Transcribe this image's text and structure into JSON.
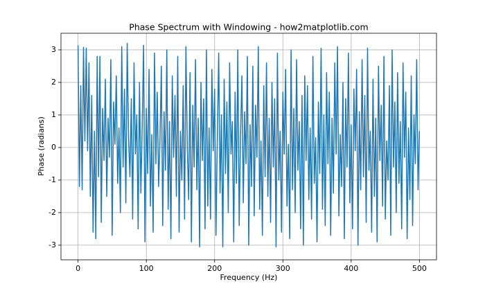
{
  "chart_data": {
    "type": "line",
    "title": "Phase Spectrum with Windowing - how2matplotlib.com",
    "xlabel": "Frequency (Hz)",
    "ylabel": "Phase (radians)",
    "x": [
      0,
      2,
      4,
      6,
      8,
      10,
      12,
      14,
      16,
      18,
      20,
      22,
      24,
      26,
      28,
      30,
      32,
      34,
      36,
      38,
      40,
      42,
      44,
      46,
      48,
      50,
      52,
      54,
      56,
      58,
      60,
      62,
      64,
      66,
      68,
      70,
      72,
      74,
      76,
      78,
      80,
      82,
      84,
      86,
      88,
      90,
      92,
      94,
      96,
      98,
      100,
      102,
      104,
      106,
      108,
      110,
      112,
      114,
      116,
      118,
      120,
      122,
      124,
      126,
      128,
      130,
      132,
      134,
      136,
      138,
      140,
      142,
      144,
      146,
      148,
      150,
      152,
      154,
      156,
      158,
      160,
      162,
      164,
      166,
      168,
      170,
      172,
      174,
      176,
      178,
      180,
      182,
      184,
      186,
      188,
      190,
      192,
      194,
      196,
      198,
      200,
      202,
      204,
      206,
      208,
      210,
      212,
      214,
      216,
      218,
      220,
      222,
      224,
      226,
      228,
      230,
      232,
      234,
      236,
      238,
      240,
      242,
      244,
      246,
      248,
      250,
      252,
      254,
      256,
      258,
      260,
      262,
      264,
      266,
      268,
      270,
      272,
      274,
      276,
      278,
      280,
      282,
      284,
      286,
      288,
      290,
      292,
      294,
      296,
      298,
      300,
      302,
      304,
      306,
      308,
      310,
      312,
      314,
      316,
      318,
      320,
      322,
      324,
      326,
      328,
      330,
      332,
      334,
      336,
      338,
      340,
      342,
      344,
      346,
      348,
      350,
      352,
      354,
      356,
      358,
      360,
      362,
      364,
      366,
      368,
      370,
      372,
      374,
      376,
      378,
      380,
      382,
      384,
      386,
      388,
      390,
      392,
      394,
      396,
      398,
      400,
      402,
      404,
      406,
      408,
      410,
      412,
      414,
      416,
      418,
      420,
      422,
      424,
      426,
      428,
      430,
      432,
      434,
      436,
      438,
      440,
      442,
      444,
      446,
      448,
      450,
      452,
      454,
      456,
      458,
      460,
      462,
      464,
      466,
      468,
      470,
      472,
      474,
      476,
      478,
      480,
      482,
      484,
      486,
      488,
      490,
      492,
      494,
      496,
      498,
      500
    ],
    "series": [
      {
        "name": "Phase",
        "color": "#1f77b4",
        "values": [
          3.14,
          -1.2,
          1.9,
          -1.3,
          3.08,
          0.2,
          3.05,
          -0.1,
          2.6,
          -1.5,
          1.6,
          -2.6,
          0.5,
          -2.8,
          2.8,
          -0.9,
          2.8,
          -2.3,
          1.2,
          -0.4,
          2.1,
          -1.5,
          0.9,
          -0.3,
          2.7,
          -2.7,
          1.4,
          0.1,
          2.2,
          -1.1,
          0.6,
          -2.0,
          3.1,
          -0.6,
          1.8,
          -1.7,
          3.2,
          0.3,
          -0.9,
          1.5,
          -2.2,
          2.6,
          -0.2,
          1.0,
          -2.5,
          2.0,
          -1.4,
          0.7,
          3.14,
          -2.9,
          1.2,
          -0.8,
          2.4,
          -1.8,
          0.4,
          -2.6,
          2.9,
          -0.5,
          1.7,
          -1.2,
          0.2,
          2.5,
          -2.4,
          1.1,
          -0.7,
          3.0,
          -1.9,
          0.8,
          -2.8,
          2.2,
          -0.3,
          1.6,
          -1.5,
          2.8,
          -2.6,
          0.5,
          -1.0,
          1.9,
          -2.2,
          3.1,
          0.0,
          -1.6,
          2.3,
          -2.9,
          1.3,
          -0.6,
          2.7,
          -1.3,
          0.9,
          -3.05,
          2.0,
          -0.4,
          1.5,
          -2.5,
          3.0,
          -1.8,
          0.6,
          -2.2,
          2.4,
          -0.1,
          1.8,
          -2.7,
          0.3,
          2.9,
          -1.4,
          1.0,
          -3.05,
          2.1,
          -0.8,
          1.4,
          -2.0,
          2.6,
          -0.2,
          0.8,
          -2.9,
          1.7,
          -1.1,
          3.0,
          -2.4,
          0.4,
          2.2,
          -1.7,
          1.1,
          -0.5,
          2.8,
          -3.0,
          0.7,
          -1.2,
          2.5,
          -2.1,
          1.3,
          -0.3,
          3.1,
          -1.9,
          0.2,
          -2.7,
          1.9,
          -0.9,
          2.6,
          -1.5,
          0.9,
          -2.3,
          2.0,
          -0.6,
          1.5,
          -3.05,
          2.9,
          -1.0,
          0.5,
          -2.6,
          1.7,
          -0.2,
          2.4,
          -1.8,
          0.1,
          -2.8,
          3.0,
          -1.3,
          1.2,
          -2.0,
          2.7,
          -0.7,
          0.8,
          -2.5,
          1.6,
          -3.0,
          2.2,
          -0.4,
          1.9,
          -1.6,
          0.6,
          -2.2,
          2.8,
          -1.1,
          0.3,
          -2.9,
          1.4,
          -0.8,
          3.05,
          -1.9,
          1.0,
          -2.4,
          2.3,
          -0.5,
          1.7,
          -2.7,
          0.9,
          -1.4,
          2.6,
          -0.2,
          3.1,
          -2.1,
          0.4,
          -1.2,
          2.0,
          -2.8,
          1.5,
          -0.6,
          2.9,
          -1.7,
          0.7,
          -2.5,
          1.8,
          -0.1,
          2.4,
          -3.0,
          1.1,
          -1.3,
          2.7,
          -0.9,
          1.6,
          -2.3,
          3.05,
          -0.7,
          0.5,
          -2.6,
          2.1,
          -1.5,
          0.9,
          -2.9,
          2.5,
          -0.4,
          1.3,
          -1.8,
          2.8,
          -2.2,
          0.2,
          -1.0,
          1.9,
          -2.7,
          3.0,
          -0.6,
          1.4,
          -2.0,
          2.3,
          -1.1,
          0.8,
          -2.5,
          2.6,
          -0.3,
          1.7,
          -2.8,
          0.6,
          -1.6,
          2.2,
          -2.4,
          1.0,
          -0.5,
          2.7,
          -1.3,
          0.5
        ]
      }
    ],
    "xlim": [
      -25,
      525
    ],
    "ylim": [
      -3.45,
      3.51
    ],
    "xticks": [
      0,
      100,
      200,
      300,
      400,
      500
    ],
    "yticks": [
      -3,
      -2,
      -1,
      0,
      1,
      2,
      3
    ],
    "grid": true
  }
}
